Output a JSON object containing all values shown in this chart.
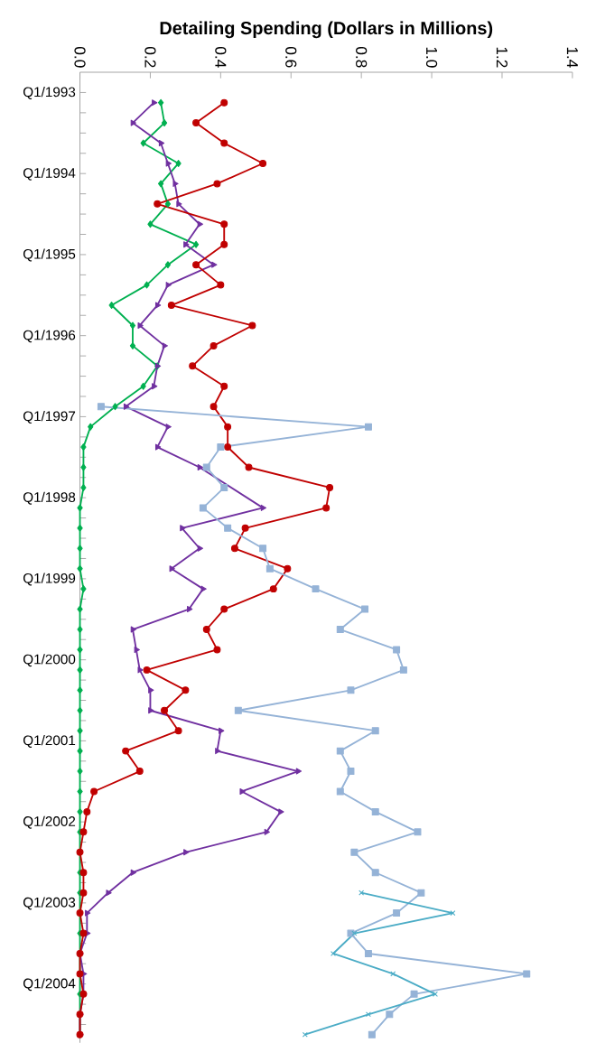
{
  "chart_data": {
    "type": "line",
    "orientation": "horizontal",
    "xlabel": "Detailing Spending (Dollars in Millions)",
    "categories": [
      "Q1/1993",
      null,
      null,
      null,
      "Q1/1994",
      null,
      null,
      null,
      "Q1/1995",
      null,
      null,
      null,
      "Q1/1996",
      null,
      null,
      null,
      "Q1/1997",
      null,
      null,
      null,
      "Q1/1998",
      null,
      null,
      null,
      "Q1/1999",
      null,
      null,
      null,
      "Q1/2000",
      null,
      null,
      null,
      "Q1/2001",
      null,
      null,
      null,
      "Q1/2002",
      null,
      null,
      null,
      "Q1/2003",
      null,
      null,
      null,
      "Q1/2004",
      null,
      null
    ],
    "xlim": [
      0,
      1.4
    ],
    "xticks": [
      {
        "value": 0,
        "label": "0.0"
      },
      0.2,
      0.4,
      0.6,
      0.8,
      {
        "value": 1,
        "label": "1.0"
      },
      1.2,
      1.4
    ],
    "grid": false,
    "series": [
      {
        "color": "#00b050",
        "marker": "diamond",
        "values": [
          0.23,
          0.24,
          0.18,
          0.28,
          0.23,
          0.25,
          0.2,
          0.33,
          0.25,
          0.19,
          0.09,
          0.15,
          0.15,
          0.22,
          0.18,
          0.1,
          0.03,
          0.01,
          0.01,
          0.01,
          0,
          0,
          0,
          0,
          0.01,
          0,
          0,
          0,
          0,
          0,
          0,
          0,
          0,
          0,
          0,
          0,
          0,
          0,
          0,
          0,
          0,
          0,
          0,
          0,
          0,
          0,
          0
        ]
      },
      {
        "color": "#7030a0",
        "marker": "triangle",
        "values": [
          0.21,
          0.15,
          0.23,
          0.25,
          0.27,
          0.28,
          0.34,
          0.3,
          0.38,
          0.25,
          0.22,
          0.17,
          0.24,
          0.22,
          0.21,
          0.13,
          0.25,
          0.22,
          0.34,
          null,
          0.52,
          0.29,
          0.34,
          0.26,
          0.35,
          0.31,
          0.15,
          0.16,
          0.17,
          0.2,
          0.2,
          0.4,
          0.39,
          0.62,
          0.46,
          0.57,
          0.53,
          0.3,
          0.15,
          0.08,
          0.02,
          0.02,
          0.0,
          0.01,
          0.01,
          0.0,
          0.0
        ]
      },
      {
        "color": "#c00000",
        "marker": "circle",
        "values": [
          0.41,
          0.33,
          0.41,
          0.52,
          0.39,
          0.22,
          0.41,
          0.41,
          0.33,
          0.4,
          0.26,
          0.49,
          0.38,
          0.32,
          0.41,
          0.38,
          0.42,
          0.42,
          0.48,
          0.71,
          0.7,
          0.47,
          0.44,
          0.59,
          0.55,
          0.41,
          0.36,
          0.39,
          0.19,
          0.3,
          0.24,
          0.28,
          0.13,
          0.17,
          0.04,
          0.02,
          0.01,
          0.0,
          0.01,
          0.01,
          0.0,
          0.01,
          0.0,
          0.0,
          0.01,
          0.0,
          0.0
        ]
      },
      {
        "color": "#95b3d7",
        "marker": "square",
        "values": [
          null,
          null,
          null,
          null,
          null,
          null,
          null,
          null,
          null,
          null,
          null,
          null,
          null,
          null,
          null,
          0.06,
          0.82,
          0.4,
          0.36,
          0.41,
          0.35,
          0.42,
          0.52,
          0.54,
          0.67,
          0.81,
          0.74,
          0.9,
          0.92,
          0.77,
          0.45,
          0.84,
          0.74,
          0.77,
          0.74,
          0.84,
          0.96,
          0.78,
          0.84,
          0.97,
          0.9,
          0.77,
          0.82,
          1.27,
          0.95,
          0.88,
          0.83
        ]
      },
      {
        "color": "#4bacc6",
        "marker": "cross",
        "values": [
          null,
          null,
          null,
          null,
          null,
          null,
          null,
          null,
          null,
          null,
          null,
          null,
          null,
          null,
          null,
          null,
          null,
          null,
          null,
          null,
          null,
          null,
          null,
          null,
          null,
          null,
          null,
          null,
          null,
          null,
          null,
          null,
          null,
          null,
          null,
          null,
          null,
          null,
          null,
          0.8,
          1.06,
          0.78,
          0.72,
          0.89,
          1.01,
          0.82,
          0.64
        ]
      }
    ]
  }
}
